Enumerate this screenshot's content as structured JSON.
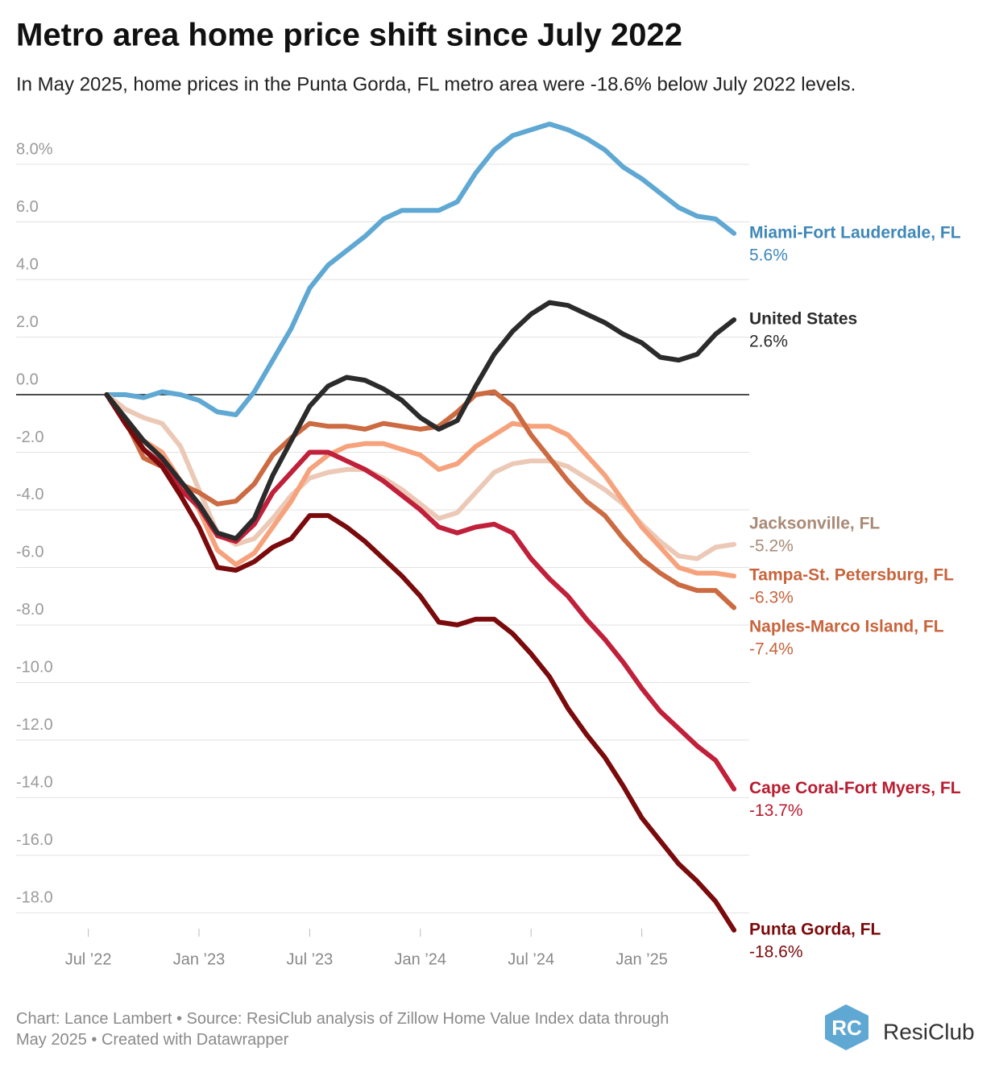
{
  "chart_data": {
    "type": "line",
    "title": "Metro area home price shift since July 2022",
    "subtitle": "In May 2025, home prices in the Punta Gorda, FL metro area were -18.6% below July 2022 levels.",
    "x": [
      "2022-07",
      "2022-08",
      "2022-09",
      "2022-10",
      "2022-11",
      "2022-12",
      "2023-01",
      "2023-02",
      "2023-03",
      "2023-04",
      "2023-05",
      "2023-06",
      "2023-07",
      "2023-08",
      "2023-09",
      "2023-10",
      "2023-11",
      "2023-12",
      "2024-01",
      "2024-02",
      "2024-03",
      "2024-04",
      "2024-05",
      "2024-06",
      "2024-07",
      "2024-08",
      "2024-09",
      "2024-10",
      "2024-11",
      "2024-12",
      "2025-01",
      "2025-02",
      "2025-03",
      "2025-04",
      "2025-05"
    ],
    "xlim": [
      "2022-03",
      "2025-07"
    ],
    "xticks": [
      {
        "value": "2022-07",
        "label": "Jul ’22"
      },
      {
        "value": "2023-01",
        "label": "Jan ’23"
      },
      {
        "value": "2023-07",
        "label": "Jul ’23"
      },
      {
        "value": "2024-01",
        "label": "Jan ’24"
      },
      {
        "value": "2024-07",
        "label": "Jul ’24"
      },
      {
        "value": "2025-01",
        "label": "Jan ’25"
      }
    ],
    "ylim": [
      -18.8,
      9.5
    ],
    "yticks": [
      {
        "value": 8,
        "label": "8.0%"
      },
      {
        "value": 6,
        "label": "6.0"
      },
      {
        "value": 4,
        "label": "4.0"
      },
      {
        "value": 2,
        "label": "2.0"
      },
      {
        "value": 0,
        "label": "0.0"
      },
      {
        "value": -2,
        "label": "-2.0"
      },
      {
        "value": -4,
        "label": "-4.0"
      },
      {
        "value": -6,
        "label": "-6.0"
      },
      {
        "value": -8,
        "label": "-8.0"
      },
      {
        "value": -10,
        "label": "-10.0"
      },
      {
        "value": -12,
        "label": "-12.0"
      },
      {
        "value": -14,
        "label": "-14.0"
      },
      {
        "value": -16,
        "label": "-16.0"
      },
      {
        "value": -18,
        "label": "-18.0"
      }
    ],
    "grid": true,
    "series": [
      {
        "name": "Miami-Fort Lauderdale, FL",
        "color": "#5fa8d3",
        "label_color": "#3f88b8",
        "end_label": "5.6%",
        "values": [
          0,
          0,
          -0.1,
          0.1,
          0,
          -0.2,
          -0.6,
          -0.7,
          0.1,
          1.2,
          2.3,
          3.7,
          4.5,
          5.0,
          5.5,
          6.1,
          6.4,
          6.4,
          6.4,
          6.7,
          7.7,
          8.5,
          9.0,
          9.2,
          9.4,
          9.2,
          8.9,
          8.5,
          7.9,
          7.5,
          7.0,
          6.5,
          6.2,
          6.1,
          5.6
        ]
      },
      {
        "name": "Jacksonville, FL",
        "color": "#ecc9b6",
        "label_color": "#a88a76",
        "end_label": "-5.2%",
        "values": [
          0,
          -0.5,
          -0.8,
          -1.0,
          -1.8,
          -3.3,
          -4.8,
          -5.2,
          -5.0,
          -4.3,
          -3.5,
          -2.9,
          -2.7,
          -2.6,
          -2.6,
          -2.9,
          -3.3,
          -3.8,
          -4.3,
          -4.1,
          -3.4,
          -2.7,
          -2.4,
          -2.3,
          -2.3,
          -2.5,
          -2.9,
          -3.3,
          -3.8,
          -4.5,
          -5.1,
          -5.6,
          -5.7,
          -5.3,
          -5.2
        ]
      },
      {
        "name": "Tampa-St. Petersburg, FL",
        "color": "#f6a27c",
        "label_color": "#c8643c",
        "end_label": "-6.3%",
        "values": [
          0,
          -0.8,
          -1.6,
          -2.0,
          -3.0,
          -4.0,
          -5.4,
          -5.9,
          -5.5,
          -4.6,
          -3.7,
          -2.6,
          -2.1,
          -1.8,
          -1.7,
          -1.7,
          -1.9,
          -2.1,
          -2.6,
          -2.4,
          -1.8,
          -1.4,
          -1.0,
          -1.1,
          -1.1,
          -1.4,
          -2.1,
          -2.8,
          -3.7,
          -4.6,
          -5.3,
          -6.0,
          -6.2,
          -6.2,
          -6.3
        ]
      },
      {
        "name": "Naples-Marco Island, FL",
        "color": "#cc6a42",
        "label_color": "#c8643c",
        "end_label": "-7.4%",
        "values": [
          0,
          -0.9,
          -2.2,
          -2.5,
          -3.1,
          -3.4,
          -3.8,
          -3.7,
          -3.1,
          -2.1,
          -1.5,
          -1.0,
          -1.1,
          -1.1,
          -1.2,
          -1.0,
          -1.1,
          -1.2,
          -1.1,
          -0.6,
          0.0,
          0.1,
          -0.4,
          -1.4,
          -2.2,
          -3.0,
          -3.7,
          -4.2,
          -5.0,
          -5.7,
          -6.2,
          -6.6,
          -6.8,
          -6.8,
          -7.4
        ]
      },
      {
        "name": "Cape Coral-Fort Myers, FL",
        "color": "#c0203a",
        "label_color": "#b81c30",
        "end_label": "-13.7%",
        "values": [
          0,
          -0.9,
          -1.9,
          -2.4,
          -3.3,
          -3.9,
          -4.9,
          -5.1,
          -4.5,
          -3.4,
          -2.7,
          -2.0,
          -2.0,
          -2.3,
          -2.6,
          -3.0,
          -3.5,
          -4.0,
          -4.6,
          -4.8,
          -4.6,
          -4.5,
          -4.8,
          -5.7,
          -6.4,
          -7.0,
          -7.8,
          -8.5,
          -9.3,
          -10.2,
          -11.0,
          -11.6,
          -12.2,
          -12.7,
          -13.7
        ]
      },
      {
        "name": "Punta Gorda, FL",
        "color": "#7a0a0c",
        "label_color": "#7a0a0c",
        "end_label": "-18.6%",
        "values": [
          0,
          -1.0,
          -1.9,
          -2.5,
          -3.5,
          -4.6,
          -6.0,
          -6.1,
          -5.8,
          -5.3,
          -5.0,
          -4.2,
          -4.2,
          -4.6,
          -5.1,
          -5.7,
          -6.3,
          -7.0,
          -7.9,
          -8.0,
          -7.8,
          -7.8,
          -8.3,
          -9.0,
          -9.8,
          -10.9,
          -11.8,
          -12.6,
          -13.6,
          -14.7,
          -15.5,
          -16.3,
          -16.9,
          -17.6,
          -18.6
        ]
      },
      {
        "name": "United States",
        "color": "#2b2b2b",
        "label_color": "#2b2b2b",
        "end_label": "2.6%",
        "values": [
          0,
          -0.8,
          -1.6,
          -2.2,
          -3.0,
          -3.8,
          -4.8,
          -5.0,
          -4.3,
          -2.8,
          -1.6,
          -0.4,
          0.3,
          0.6,
          0.5,
          0.2,
          -0.2,
          -0.8,
          -1.2,
          -0.9,
          0.3,
          1.4,
          2.2,
          2.8,
          3.2,
          3.1,
          2.8,
          2.5,
          2.1,
          1.8,
          1.3,
          1.2,
          1.4,
          2.1,
          2.6
        ]
      }
    ],
    "footer": "Chart: Lance Lambert • Source: ResiClub analysis of Zillow Home Value Index data through May 2025 • Created with Datawrapper",
    "logo": {
      "icon": "RC",
      "text": "ResiClub"
    }
  }
}
